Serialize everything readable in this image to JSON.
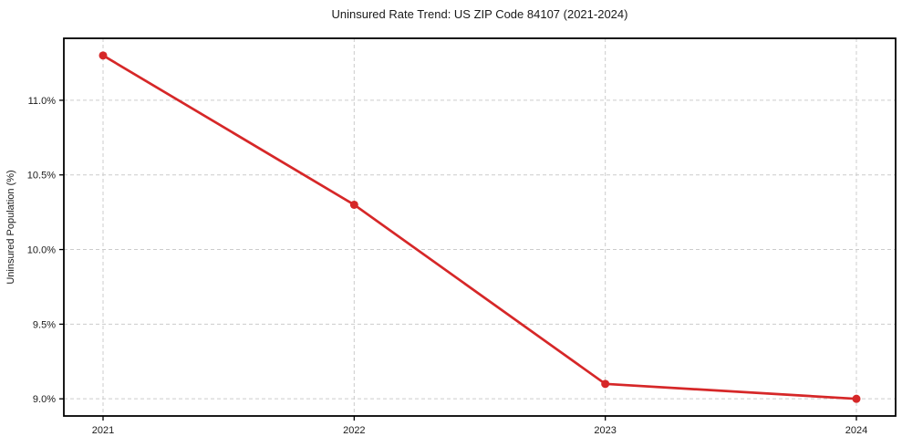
{
  "chart_data": {
    "type": "line",
    "title": "Uninsured Rate Trend: US ZIP Code 84107 (2021-2024)",
    "xlabel": "",
    "ylabel": "Uninsured Population (%)",
    "categories": [
      "2021",
      "2022",
      "2023",
      "2024"
    ],
    "series": [
      {
        "values": [
          11.3,
          10.3,
          9.1,
          9.0
        ],
        "color": "#d62728"
      }
    ],
    "ylim": [
      8.885,
      11.415
    ],
    "yticks": [
      9.0,
      9.5,
      10.0,
      10.5,
      11.0
    ],
    "ytick_labels": [
      "9.0%",
      "9.5%",
      "10.0%",
      "10.5%",
      "11.0%"
    ],
    "grid": true,
    "grid_style": "dashed",
    "legend": false
  },
  "colors": {
    "line": "#d62728",
    "grid": "#cccccc",
    "spine": "#000000",
    "text": "#1a1a1a",
    "background": "#ffffff"
  }
}
